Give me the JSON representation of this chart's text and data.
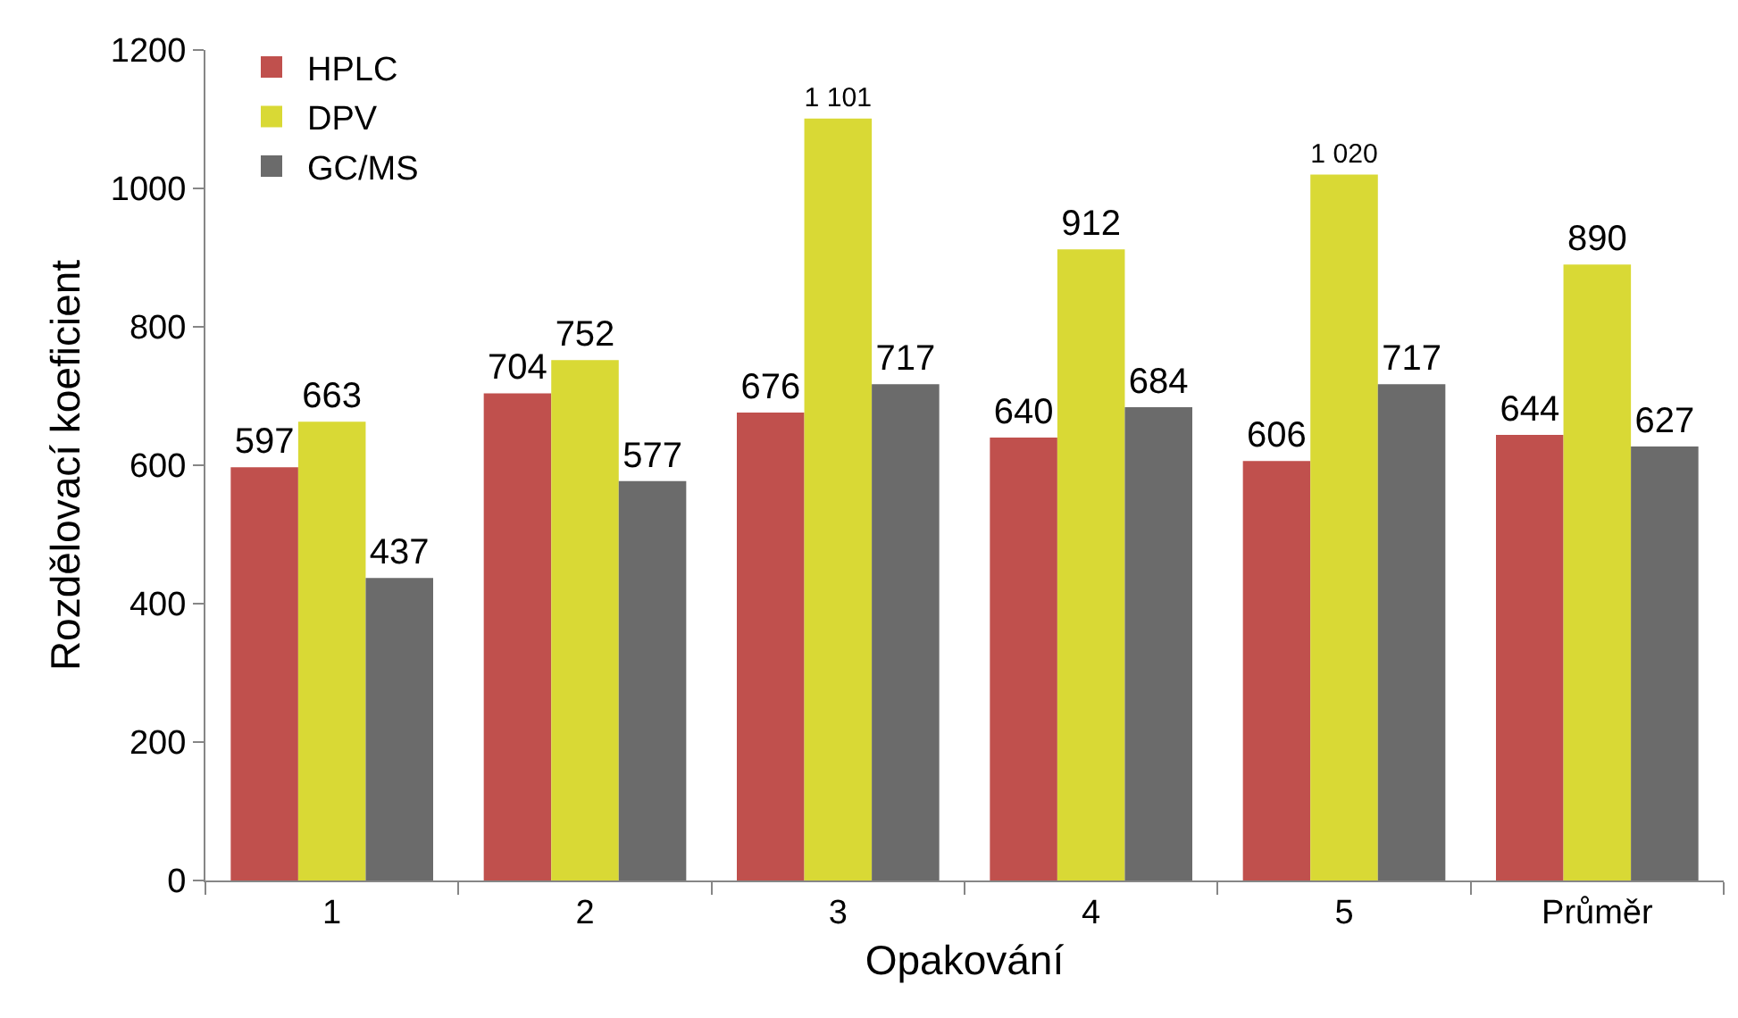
{
  "chart_data": {
    "type": "bar",
    "xlabel": "Opakování",
    "ylabel": "Rozdělovací koeficient",
    "categories": [
      "1",
      "2",
      "3",
      "4",
      "5",
      "Průměr"
    ],
    "series": [
      {
        "name": "HPLC",
        "color": "#c0504d",
        "values": [
          597,
          704,
          676,
          640,
          606,
          644
        ],
        "value_labels": [
          "597",
          "704",
          "676",
          "640",
          "606",
          "644"
        ]
      },
      {
        "name": "DPV",
        "color": "#d9d935",
        "values": [
          663,
          752,
          1101,
          912,
          1020,
          890
        ],
        "value_labels": [
          "663",
          "752",
          "1 101",
          "912",
          "1 020",
          "890"
        ]
      },
      {
        "name": "GC/MS",
        "color": "#6b6b6b",
        "values": [
          437,
          577,
          717,
          684,
          717,
          627
        ],
        "value_labels": [
          "437",
          "577",
          "717",
          "684",
          "717",
          "627"
        ]
      }
    ],
    "ylim": [
      0,
      1200
    ],
    "yticks": [
      0,
      200,
      400,
      600,
      800,
      1000,
      1200
    ],
    "grid": false,
    "legend": "top left"
  }
}
